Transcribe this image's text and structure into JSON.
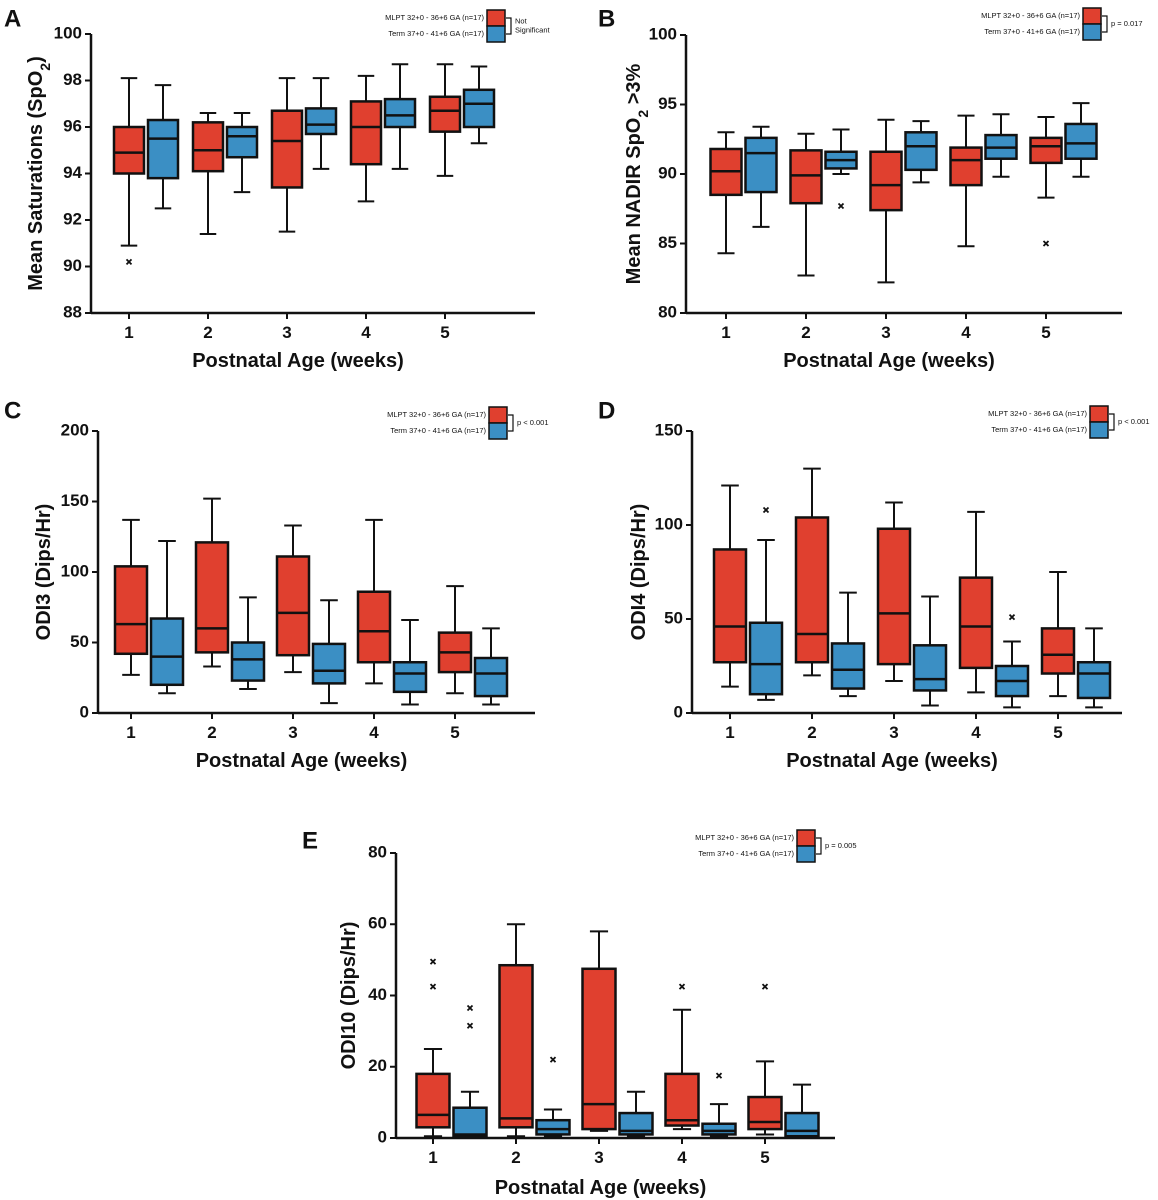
{
  "colors": {
    "mlpt": "#e0402f",
    "term": "#3b8fc4",
    "stroke": "#111111"
  },
  "chart_data": [
    {
      "type": "box",
      "panel": "A",
      "xlabel": "Postnatal Age (weeks)",
      "ylabel": "Mean Saturations (SpO",
      "ylabel_sub": "2",
      "ylabel_after": ")",
      "categories": [
        "1",
        "2",
        "3",
        "4",
        "5"
      ],
      "ylim": [
        88,
        100
      ],
      "yticks": [
        88,
        90,
        92,
        94,
        96,
        98,
        100
      ],
      "legend": [
        "MLPT 32+0 - 36+6 GA (n=17)",
        "Term 37+0 - 41+6 GA (n=17)"
      ],
      "significance": [
        "Not",
        "Significant"
      ],
      "series": [
        {
          "name": "MLPT 32+0 - 36+6 GA (n=17)",
          "boxes": [
            {
              "min": 90.9,
              "q1": 94.0,
              "median": 94.9,
              "q3": 96.0,
              "max": 98.1,
              "outliers": [
                90.2
              ]
            },
            {
              "min": 91.4,
              "q1": 94.1,
              "median": 95.0,
              "q3": 96.2,
              "max": 96.6,
              "outliers": []
            },
            {
              "min": 91.5,
              "q1": 93.4,
              "median": 95.4,
              "q3": 96.7,
              "max": 98.1,
              "outliers": []
            },
            {
              "min": 92.8,
              "q1": 94.4,
              "median": 96.0,
              "q3": 97.1,
              "max": 98.2,
              "outliers": []
            },
            {
              "min": 93.9,
              "q1": 95.8,
              "median": 96.7,
              "q3": 97.3,
              "max": 98.7,
              "outliers": []
            }
          ]
        },
        {
          "name": "Term 37+0 - 41+6 GA (n=17)",
          "boxes": [
            {
              "min": 92.5,
              "q1": 93.8,
              "median": 95.5,
              "q3": 96.3,
              "max": 97.8,
              "outliers": []
            },
            {
              "min": 93.2,
              "q1": 94.7,
              "median": 95.6,
              "q3": 96.0,
              "max": 96.6,
              "outliers": []
            },
            {
              "min": 94.2,
              "q1": 95.7,
              "median": 96.1,
              "q3": 96.8,
              "max": 98.1,
              "outliers": []
            },
            {
              "min": 94.2,
              "q1": 96.0,
              "median": 96.5,
              "q3": 97.2,
              "max": 98.7,
              "outliers": []
            },
            {
              "min": 95.3,
              "q1": 96.0,
              "median": 97.0,
              "q3": 97.6,
              "max": 98.6,
              "outliers": []
            }
          ]
        }
      ]
    },
    {
      "type": "box",
      "panel": "B",
      "xlabel": "Postnatal Age (weeks)",
      "ylabel": "Mean NADIR SpO",
      "ylabel_sub": "2",
      "ylabel_after": " >3%",
      "categories": [
        "1",
        "2",
        "3",
        "4",
        "5"
      ],
      "ylim": [
        80,
        100
      ],
      "yticks": [
        80,
        85,
        90,
        95,
        100
      ],
      "legend": [
        "MLPT 32+0 - 36+6 GA (n=17)",
        "Term 37+0 - 41+6 GA (n=17)"
      ],
      "significance": [
        "p = 0.017"
      ],
      "series": [
        {
          "name": "MLPT 32+0 - 36+6 GA (n=17)",
          "boxes": [
            {
              "min": 84.3,
              "q1": 88.5,
              "median": 90.2,
              "q3": 91.8,
              "max": 93.0,
              "outliers": []
            },
            {
              "min": 82.7,
              "q1": 87.9,
              "median": 89.9,
              "q3": 91.7,
              "max": 92.9,
              "outliers": []
            },
            {
              "min": 82.2,
              "q1": 87.4,
              "median": 89.2,
              "q3": 91.6,
              "max": 93.9,
              "outliers": []
            },
            {
              "min": 84.8,
              "q1": 89.2,
              "median": 91.0,
              "q3": 91.9,
              "max": 94.2,
              "outliers": []
            },
            {
              "min": 88.3,
              "q1": 90.8,
              "median": 92.0,
              "q3": 92.6,
              "max": 94.1,
              "outliers": [
                85.0
              ]
            }
          ]
        },
        {
          "name": "Term 37+0 - 41+6 GA (n=17)",
          "boxes": [
            {
              "min": 86.2,
              "q1": 88.7,
              "median": 91.5,
              "q3": 92.6,
              "max": 93.4,
              "outliers": []
            },
            {
              "min": 90.0,
              "q1": 90.4,
              "median": 91.0,
              "q3": 91.6,
              "max": 93.2,
              "outliers": [
                87.7
              ]
            },
            {
              "min": 89.4,
              "q1": 90.3,
              "median": 92.0,
              "q3": 93.0,
              "max": 93.8,
              "outliers": []
            },
            {
              "min": 89.8,
              "q1": 91.1,
              "median": 91.9,
              "q3": 92.8,
              "max": 94.3,
              "outliers": []
            },
            {
              "min": 89.8,
              "q1": 91.1,
              "median": 92.2,
              "q3": 93.6,
              "max": 95.1,
              "outliers": []
            }
          ]
        }
      ]
    },
    {
      "type": "box",
      "panel": "C",
      "xlabel": "Postnatal Age (weeks)",
      "ylabel": "ODI3 (Dips/Hr)",
      "ylabel_sub": "",
      "ylabel_after": "",
      "categories": [
        "1",
        "2",
        "3",
        "4",
        "5"
      ],
      "ylim": [
        0,
        200
      ],
      "yticks": [
        0,
        50,
        100,
        150,
        200
      ],
      "legend": [
        "MLPT 32+0 - 36+6 GA (n=17)",
        "Term 37+0 - 41+6 GA (n=17)"
      ],
      "significance": [
        "p < 0.001"
      ],
      "series": [
        {
          "name": "MLPT 32+0 - 36+6 GA (n=17)",
          "boxes": [
            {
              "min": 27,
              "q1": 42,
              "median": 63,
              "q3": 104,
              "max": 137,
              "outliers": []
            },
            {
              "min": 33,
              "q1": 43,
              "median": 60,
              "q3": 121,
              "max": 152,
              "outliers": []
            },
            {
              "min": 29,
              "q1": 41,
              "median": 71,
              "q3": 111,
              "max": 133,
              "outliers": []
            },
            {
              "min": 21,
              "q1": 36,
              "median": 58,
              "q3": 86,
              "max": 137,
              "outliers": []
            },
            {
              "min": 14,
              "q1": 29,
              "median": 43,
              "q3": 57,
              "max": 90,
              "outliers": []
            }
          ]
        },
        {
          "name": "Term 37+0 - 41+6 GA (n=17)",
          "boxes": [
            {
              "min": 14,
              "q1": 20,
              "median": 40,
              "q3": 67,
              "max": 122,
              "outliers": []
            },
            {
              "min": 17,
              "q1": 23,
              "median": 38,
              "q3": 50,
              "max": 82,
              "outliers": []
            },
            {
              "min": 7,
              "q1": 21,
              "median": 30,
              "q3": 49,
              "max": 80,
              "outliers": []
            },
            {
              "min": 6,
              "q1": 15,
              "median": 28,
              "q3": 36,
              "max": 66,
              "outliers": []
            },
            {
              "min": 6,
              "q1": 12,
              "median": 28,
              "q3": 39,
              "max": 60,
              "outliers": []
            }
          ]
        }
      ]
    },
    {
      "type": "box",
      "panel": "D",
      "xlabel": "Postnatal Age (weeks)",
      "ylabel": "ODI4 (Dips/Hr)",
      "ylabel_sub": "",
      "ylabel_after": "",
      "categories": [
        "1",
        "2",
        "3",
        "4",
        "5"
      ],
      "ylim": [
        0,
        150
      ],
      "yticks": [
        0,
        50,
        100,
        150
      ],
      "legend": [
        "MLPT 32+0 - 36+6 GA (n=17)",
        "Term 37+0 - 41+6 GA (n=17)"
      ],
      "significance": [
        "p < 0.001"
      ],
      "series": [
        {
          "name": "MLPT 32+0 - 36+6 GA (n=17)",
          "boxes": [
            {
              "min": 14,
              "q1": 27,
              "median": 46,
              "q3": 87,
              "max": 121,
              "outliers": []
            },
            {
              "min": 20,
              "q1": 27,
              "median": 42,
              "q3": 104,
              "max": 130,
              "outliers": []
            },
            {
              "min": 17,
              "q1": 26,
              "median": 53,
              "q3": 98,
              "max": 112,
              "outliers": []
            },
            {
              "min": 11,
              "q1": 24,
              "median": 46,
              "q3": 72,
              "max": 107,
              "outliers": []
            },
            {
              "min": 9,
              "q1": 21,
              "median": 31,
              "q3": 45,
              "max": 75,
              "outliers": []
            }
          ]
        },
        {
          "name": "Term 37+0 - 41+6 GA (n=17)",
          "boxes": [
            {
              "min": 7,
              "q1": 10,
              "median": 26,
              "q3": 48,
              "max": 92,
              "outliers": [
                108
              ]
            },
            {
              "min": 9,
              "q1": 13,
              "median": 23,
              "q3": 37,
              "max": 64,
              "outliers": []
            },
            {
              "min": 4,
              "q1": 12,
              "median": 18,
              "q3": 36,
              "max": 62,
              "outliers": []
            },
            {
              "min": 3,
              "q1": 9,
              "median": 17,
              "q3": 25,
              "max": 38,
              "outliers": [
                51
              ]
            },
            {
              "min": 3,
              "q1": 8,
              "median": 21,
              "q3": 27,
              "max": 45,
              "outliers": []
            }
          ]
        }
      ]
    },
    {
      "type": "box",
      "panel": "E",
      "xlabel": "Postnatal Age (weeks)",
      "ylabel": "ODI10 (Dips/Hr)",
      "ylabel_sub": "",
      "ylabel_after": "",
      "categories": [
        "1",
        "2",
        "3",
        "4",
        "5"
      ],
      "ylim": [
        0,
        80
      ],
      "yticks": [
        0,
        20,
        40,
        60,
        80
      ],
      "legend": [
        "MLPT 32+0 - 36+6 GA (n=17)",
        "Term 37+0 - 41+6 GA (n=17)"
      ],
      "significance": [
        "p = 0.005"
      ],
      "series": [
        {
          "name": "MLPT 32+0 - 36+6 GA (n=17)",
          "boxes": [
            {
              "min": 0.5,
              "q1": 3,
              "median": 6.5,
              "q3": 18,
              "max": 25,
              "outliers": [
                49.5,
                42.5
              ]
            },
            {
              "min": 0.5,
              "q1": 3,
              "median": 5.5,
              "q3": 48.5,
              "max": 60,
              "outliers": []
            },
            {
              "min": 2,
              "q1": 2.5,
              "median": 9.5,
              "q3": 47.5,
              "max": 58,
              "outliers": []
            },
            {
              "min": 2.5,
              "q1": 3.5,
              "median": 5,
              "q3": 18,
              "max": 36,
              "outliers": [
                42.5
              ]
            },
            {
              "min": 1,
              "q1": 2.5,
              "median": 4.5,
              "q3": 11.5,
              "max": 21.5,
              "outliers": [
                42.5
              ]
            }
          ]
        },
        {
          "name": "Term 37+0 - 41+6 GA (n=17)",
          "boxes": [
            {
              "min": 0,
              "q1": 0.5,
              "median": 1,
              "q3": 8.5,
              "max": 13,
              "outliers": [
                36.5,
                31.5
              ]
            },
            {
              "min": 0.5,
              "q1": 1,
              "median": 2.5,
              "q3": 5,
              "max": 8,
              "outliers": [
                22
              ]
            },
            {
              "min": 0.5,
              "q1": 1,
              "median": 2,
              "q3": 7,
              "max": 13,
              "outliers": []
            },
            {
              "min": 0.5,
              "q1": 1,
              "median": 2,
              "q3": 4,
              "max": 9.5,
              "outliers": [
                17.5
              ]
            },
            {
              "min": 0,
              "q1": 0.5,
              "median": 2,
              "q3": 7,
              "max": 15,
              "outliers": []
            }
          ]
        }
      ]
    }
  ]
}
